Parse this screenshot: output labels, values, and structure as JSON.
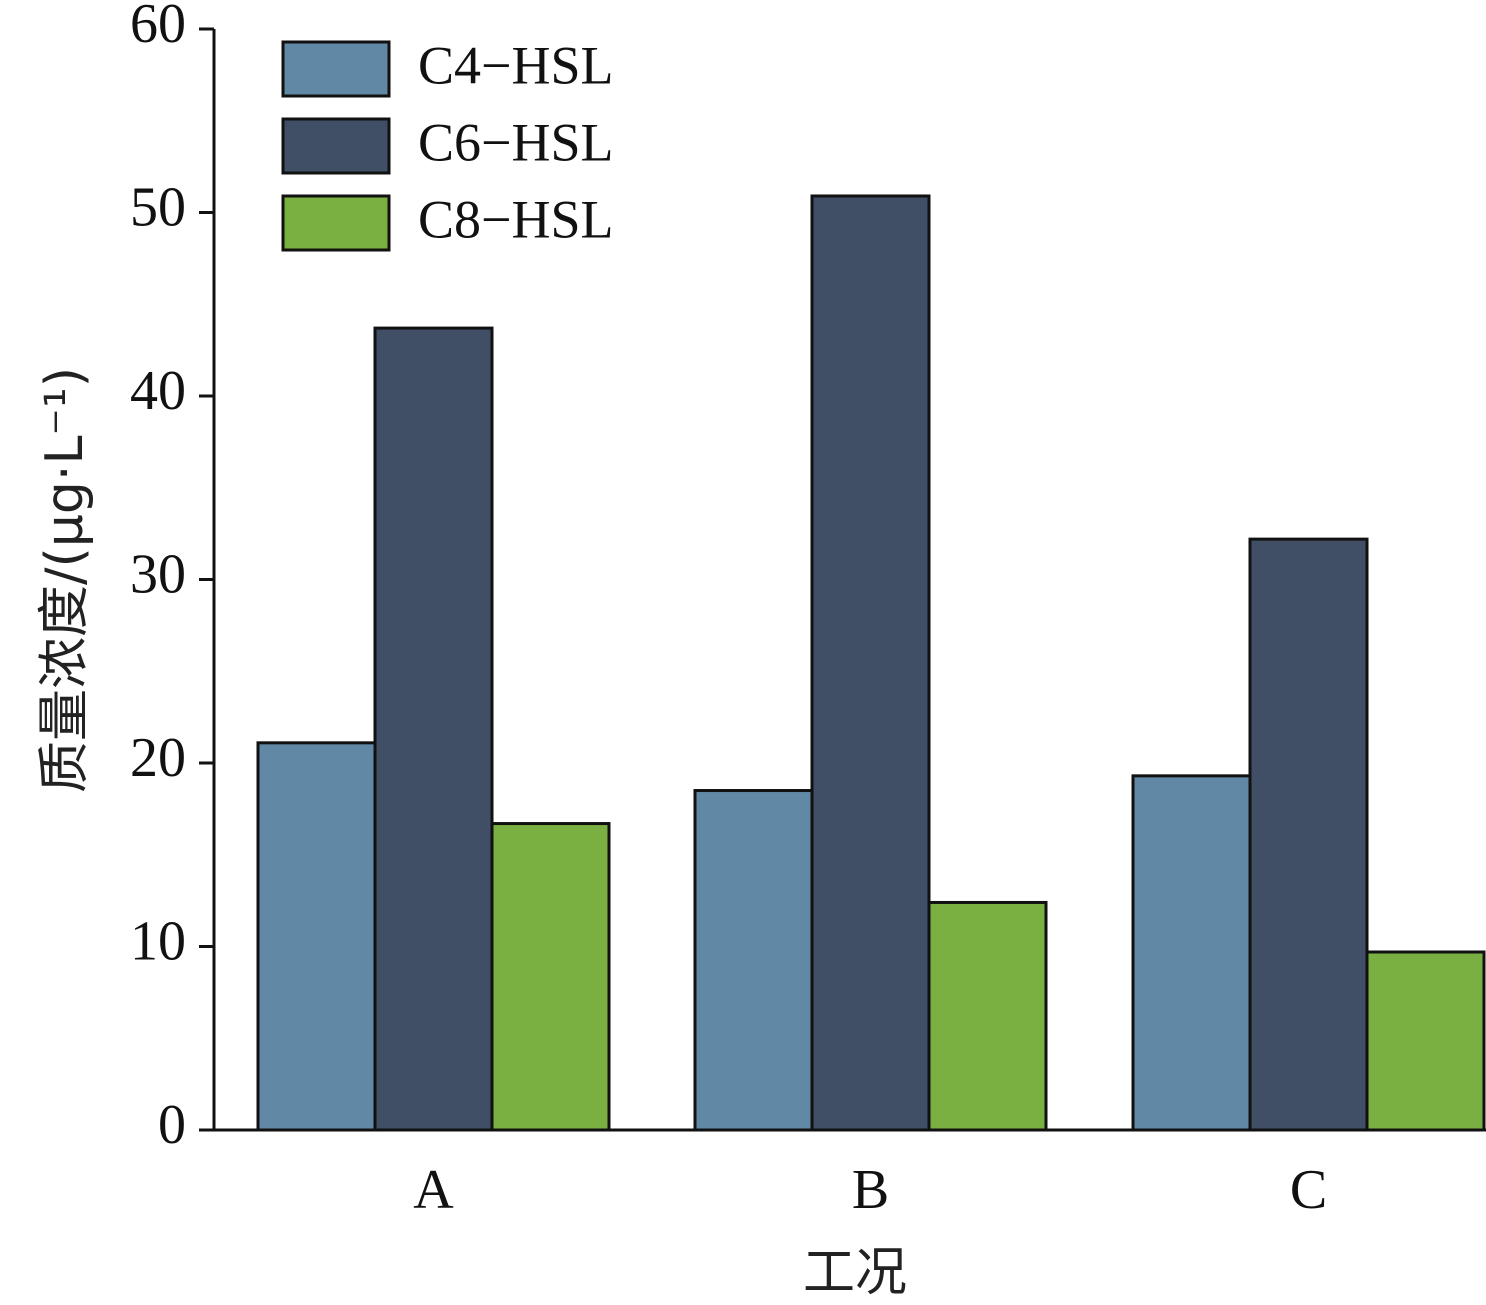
{
  "chart_data": {
    "type": "bar",
    "categories": [
      "A",
      "B",
      "C"
    ],
    "series": [
      {
        "name": "C4−HSL",
        "color": "#6189a6",
        "values": [
          21.1,
          18.5,
          19.3
        ]
      },
      {
        "name": "C6−HSL",
        "color": "#404f66",
        "values": [
          43.7,
          50.9,
          32.2
        ]
      },
      {
        "name": "C8−HSL",
        "color": "#7aaf42",
        "values": [
          16.7,
          12.4,
          9.7
        ]
      }
    ],
    "xlabel": "工况",
    "ylabel": "质量浓度/(μg·L⁻¹)",
    "ylim": [
      0,
      60
    ],
    "yticks": [
      0,
      10,
      20,
      30,
      40,
      50,
      60
    ],
    "legend_position": "top-left",
    "grid": false
  }
}
